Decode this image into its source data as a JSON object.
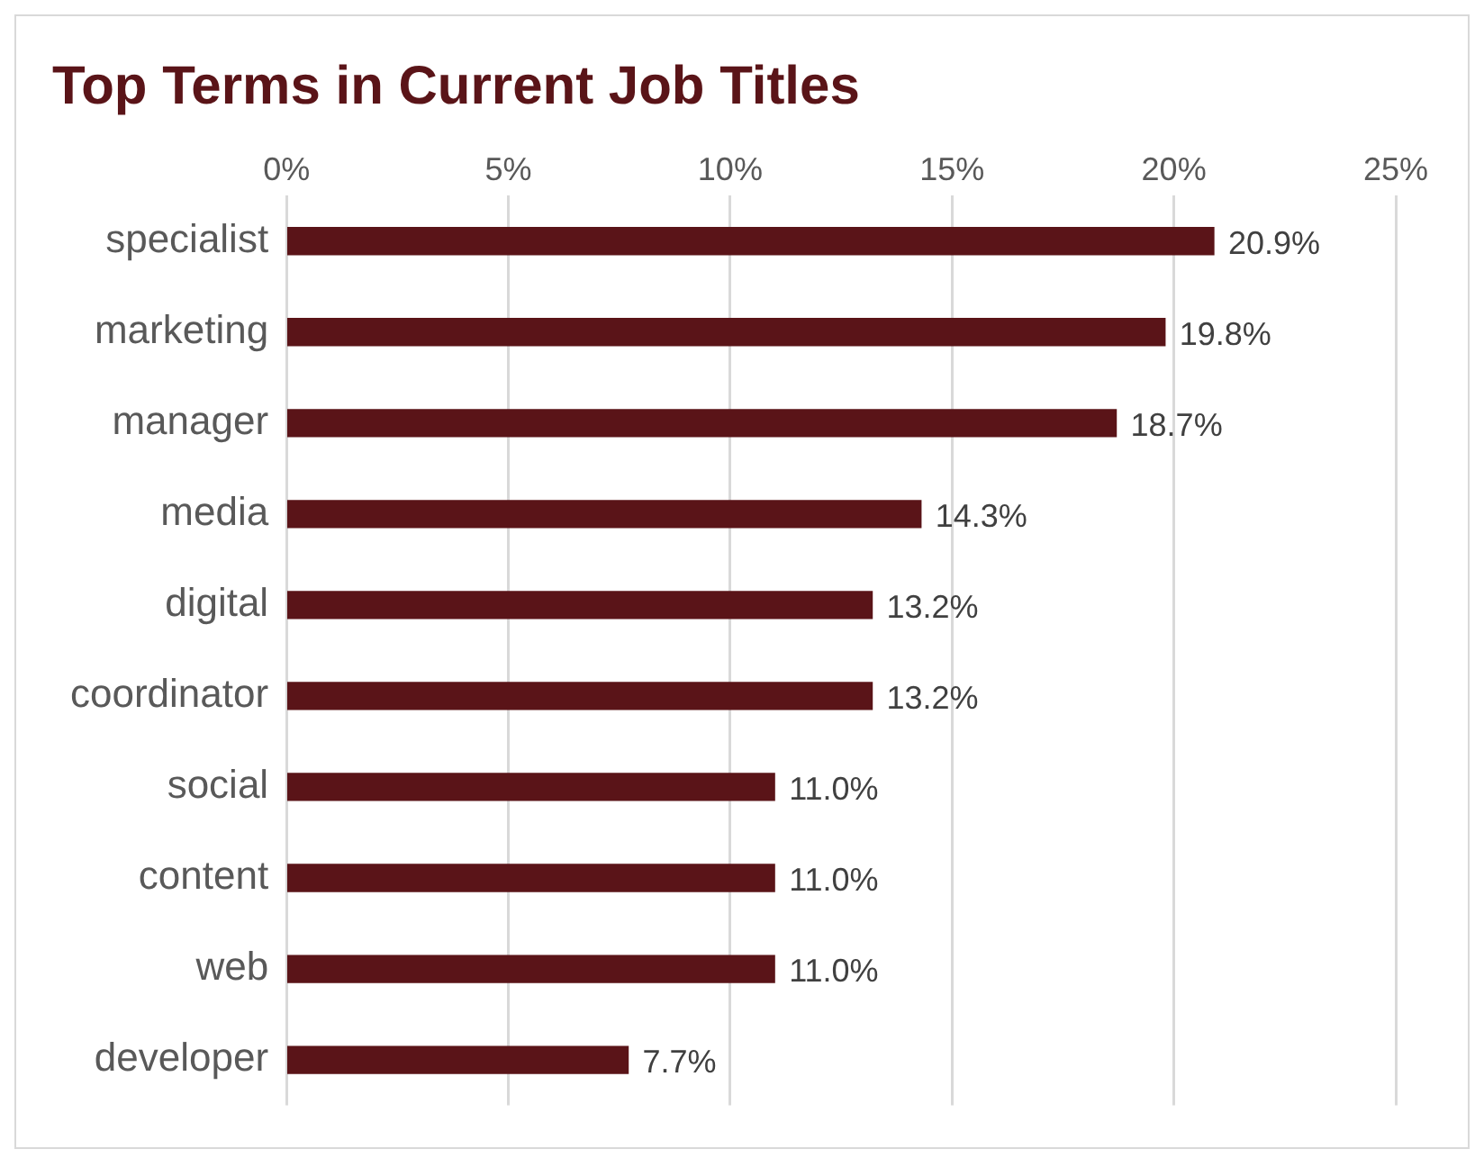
{
  "chart_data": {
    "type": "bar",
    "orientation": "horizontal",
    "title": "Top Terms in Current Job Titles",
    "categories": [
      "specialist",
      "marketing",
      "manager",
      "media",
      "digital",
      "coordinator",
      "social",
      "content",
      "web",
      "developer"
    ],
    "values": [
      20.9,
      19.8,
      18.7,
      14.3,
      13.2,
      13.2,
      11.0,
      11.0,
      11.0,
      7.7
    ],
    "value_labels": [
      "20.9%",
      "19.8%",
      "18.7%",
      "14.3%",
      "13.2%",
      "13.2%",
      "11.0%",
      "11.0%",
      "11.0%",
      "7.7%"
    ],
    "color": "#5a1418",
    "xlim": [
      0,
      25
    ],
    "xticks": [
      {
        "value": 0,
        "label": "0%"
      },
      {
        "value": 5,
        "label": "5%"
      },
      {
        "value": 10,
        "label": "10%"
      },
      {
        "value": 15,
        "label": "15%"
      },
      {
        "value": 20,
        "label": "20%"
      },
      {
        "value": 25,
        "label": "25%"
      }
    ],
    "grid": "x",
    "legend": false
  }
}
